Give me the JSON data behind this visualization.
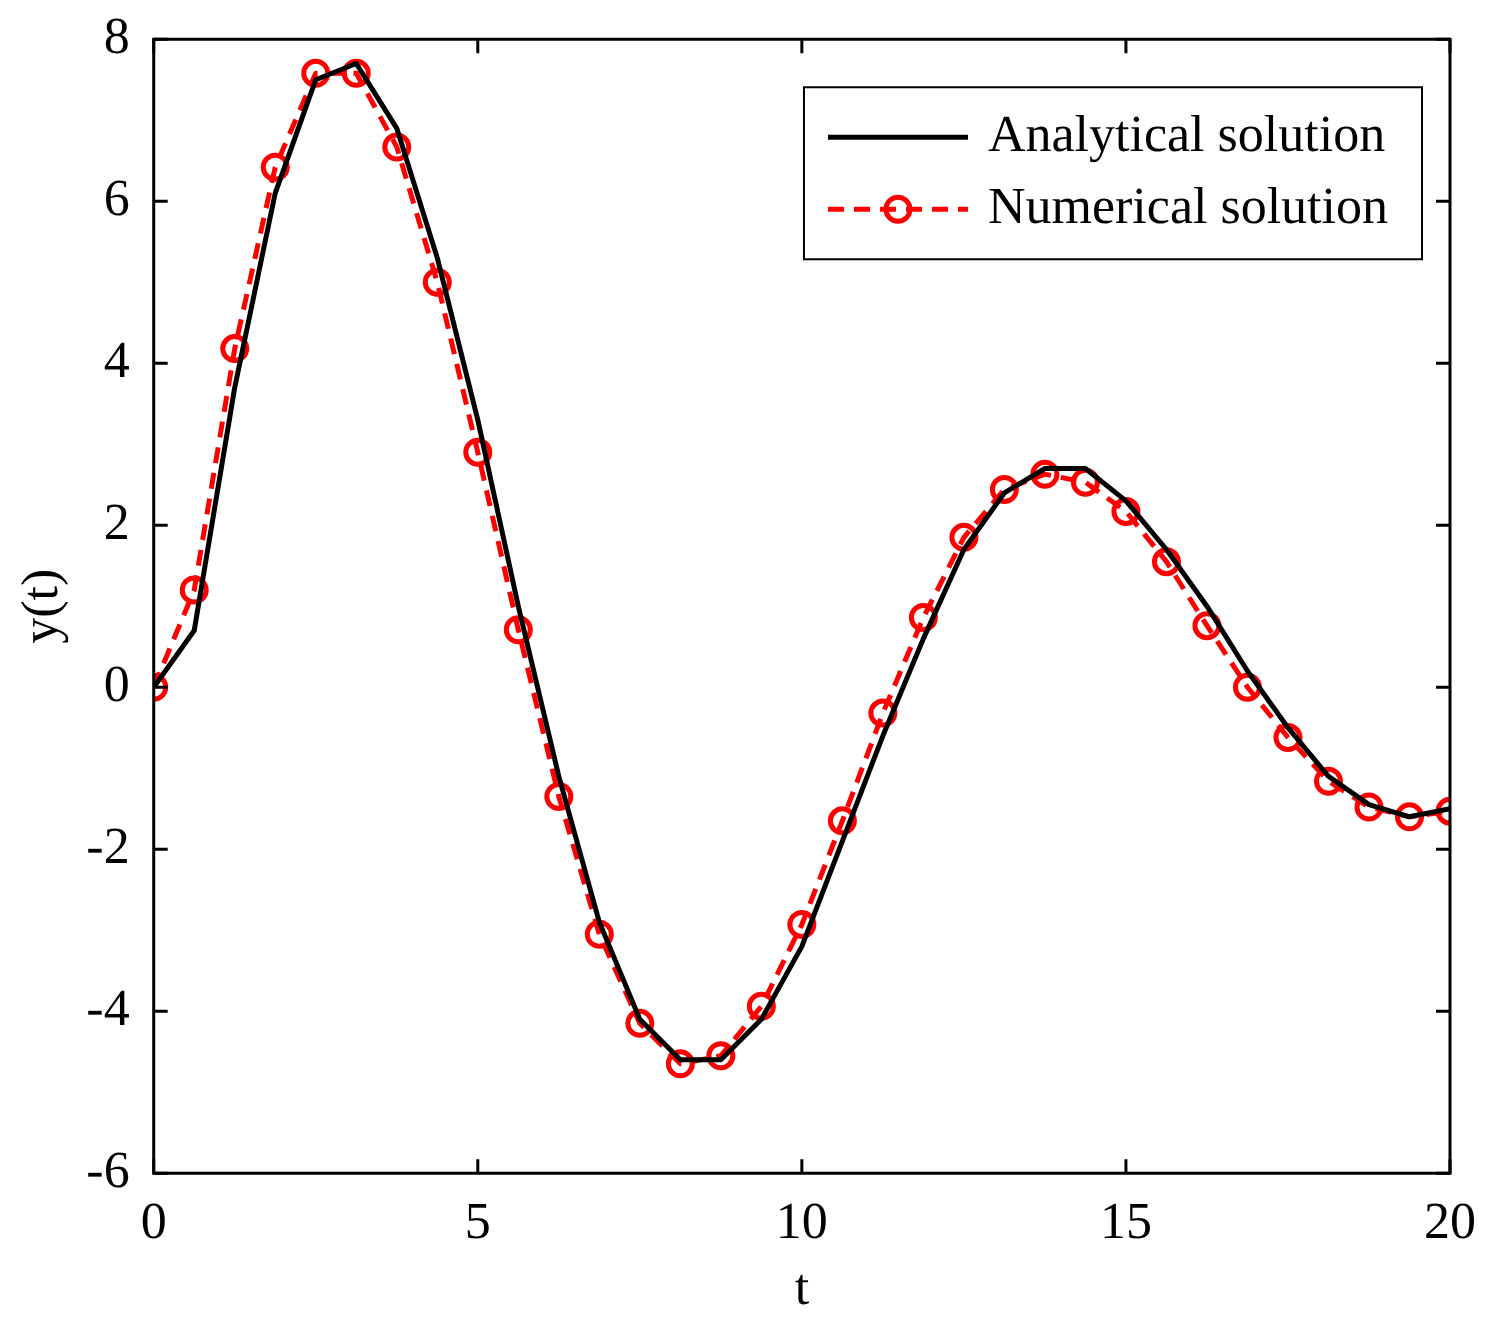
{
  "chart_data": {
    "type": "line",
    "xlabel": "t",
    "ylabel": "y(t)",
    "xlim": [
      0,
      20
    ],
    "xticks": [
      0,
      5,
      10,
      15,
      20
    ],
    "ylim": [
      -6,
      8
    ],
    "yticks": [
      -6,
      -4,
      -2,
      0,
      2,
      4,
      6,
      8
    ],
    "grid": false,
    "legend": "top right",
    "series": [
      {
        "name": "Analytical solution",
        "color": "#000000",
        "marker": "none",
        "line_style": "solid",
        "x": [
          0,
          0.625,
          1.25,
          1.875,
          2.5,
          3.125,
          3.75,
          4.375,
          5,
          5.625,
          6.25,
          6.875,
          7.5,
          8.125,
          8.75,
          9.375,
          10,
          10.625,
          11.25,
          11.875,
          12.5,
          13.125,
          13.75,
          14.375,
          15,
          15.625,
          16.25,
          16.875,
          17.5,
          18.125,
          18.75,
          19.375,
          20
        ],
        "values": [
          0,
          0.7,
          3.7,
          6.1,
          7.5,
          7.7,
          6.9,
          5.3,
          3.3,
          1.0,
          -1.1,
          -2.9,
          -4.1,
          -4.6,
          -4.6,
          -4.1,
          -3.2,
          -1.9,
          -0.6,
          0.6,
          1.7,
          2.4,
          2.7,
          2.7,
          2.3,
          1.7,
          1.0,
          0.2,
          -0.5,
          -1.1,
          -1.45,
          -1.6,
          -1.5
        ]
      },
      {
        "name": "Numerical solution",
        "color": "#ff0000",
        "marker": "circle",
        "line_style": "dashed",
        "x": [
          0,
          0.625,
          1.25,
          1.875,
          2.5,
          3.125,
          3.75,
          4.375,
          5,
          5.625,
          6.25,
          6.875,
          7.5,
          8.125,
          8.75,
          9.375,
          10,
          10.625,
          11.25,
          11.875,
          12.5,
          13.125,
          13.75,
          14.375,
          15,
          15.625,
          16.25,
          16.875,
          17.5,
          18.125,
          18.75,
          19.375,
          20
        ],
        "values": [
          0,
          1.2,
          4.18,
          6.42,
          7.58,
          7.58,
          6.67,
          5.0,
          2.9,
          0.71,
          -1.35,
          -3.05,
          -4.15,
          -4.65,
          -4.55,
          -3.94,
          -2.93,
          -1.65,
          -0.32,
          0.86,
          1.85,
          2.44,
          2.63,
          2.53,
          2.17,
          1.55,
          0.76,
          0,
          -0.62,
          -1.16,
          -1.48,
          -1.6,
          -1.53
        ]
      }
    ]
  }
}
